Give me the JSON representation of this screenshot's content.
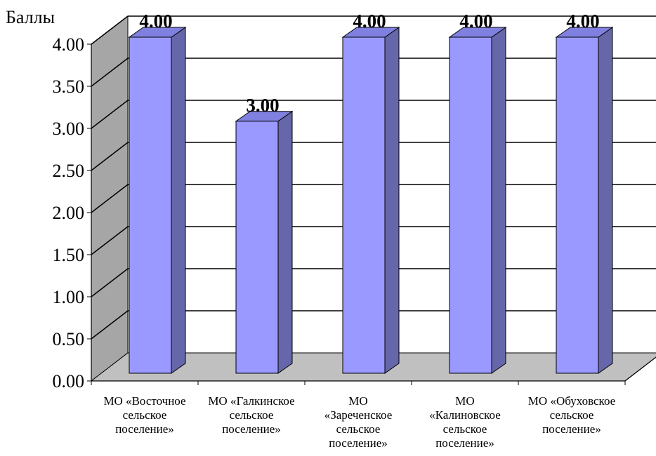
{
  "chart_data": {
    "type": "bar",
    "ylabel": "Баллы",
    "xlabel": "",
    "ylim": [
      0,
      4
    ],
    "yticks": [
      "0.00",
      "0.50",
      "1.00",
      "1.50",
      "2.00",
      "2.50",
      "3.00",
      "3.50",
      "4.00"
    ],
    "categories": [
      [
        "МО «Восточное",
        "сельское",
        "поселение»"
      ],
      [
        "МО «Галкинское",
        "сельское",
        "поселение»"
      ],
      [
        "МО",
        "«Зареченское",
        "сельское",
        "поселение»"
      ],
      [
        "МО",
        "«Калиновское",
        "сельское",
        "поселение»"
      ],
      [
        "МО «Обуховское",
        "сельское",
        "поселение»"
      ]
    ],
    "values": [
      4,
      3,
      4,
      4,
      4
    ],
    "data_labels": [
      "4.00",
      "3.00",
      "4.00",
      "4.00",
      "4.00"
    ],
    "grid": true,
    "style": "3d-column",
    "colors": {
      "bar_front": "#9999ff",
      "bar_side": "#6666aa",
      "bar_top": "#8080e0",
      "back_wall": "#ffffff",
      "side_wall": "#a6a6a6",
      "floor": "#c0c0c0",
      "gridline": "#000000"
    }
  }
}
